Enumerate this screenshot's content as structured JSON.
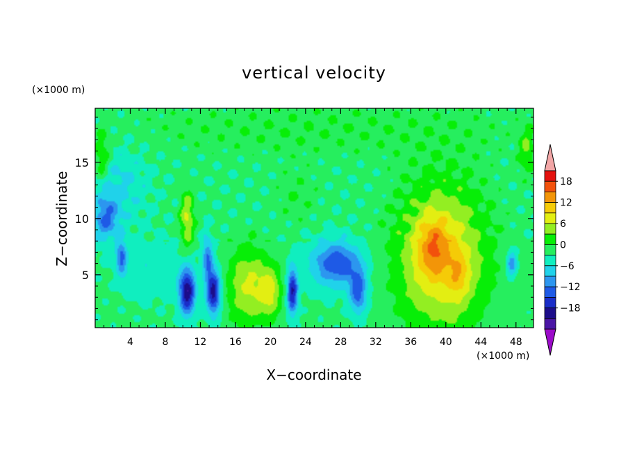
{
  "chart_data": {
    "type": "heatmap",
    "title": "vertical velocity",
    "xlabel": "X−coordinate",
    "ylabel": "Z−coordinate",
    "x_unit": "(×1000 m)",
    "z_unit": "(×1000 m)",
    "xlim": [
      0,
      50
    ],
    "zlim": [
      0.3,
      19.8
    ],
    "x_ticks": [
      "4",
      "8",
      "12",
      "16",
      "20",
      "24",
      "28",
      "32",
      "36",
      "40",
      "44",
      "48"
    ],
    "z_ticks": [
      "5",
      "10",
      "15"
    ],
    "colorbar": {
      "levels": [
        -21,
        -18,
        -15,
        -12,
        -9,
        -6,
        -3,
        0,
        3,
        6,
        9,
        12,
        15,
        18,
        21
      ],
      "tick_labels": [
        "18",
        "12",
        "6",
        "0",
        "−6",
        "−12",
        "−18"
      ],
      "colors": [
        "#9B0BC9",
        "#4A16A5",
        "#1C0D8A",
        "#1A2DC8",
        "#1E5AE6",
        "#2C96EF",
        "#20D2EA",
        "#10EEBF",
        "#26EE5E",
        "#07EE07",
        "#93EE22",
        "#E3EE12",
        "#F5CB07",
        "#F39508",
        "#F2510C",
        "#E4120F",
        "#F2A6A6"
      ]
    },
    "features": [
      {
        "x": 3.0,
        "z": 13.0,
        "rx": 3.0,
        "rz": 3.5,
        "w": -4
      },
      {
        "x": 1.2,
        "z": 10.0,
        "rx": 1.5,
        "rz": 2.0,
        "w": -9
      },
      {
        "x": 3.0,
        "z": 6.5,
        "rx": 0.6,
        "rz": 1.5,
        "w": -10
      },
      {
        "x": 6.5,
        "z": 5.5,
        "rx": 3.5,
        "rz": 2.5,
        "w": -3
      },
      {
        "x": 10.5,
        "z": 10.0,
        "rx": 0.8,
        "rz": 2.5,
        "w": 9
      },
      {
        "x": 10.5,
        "z": 3.5,
        "rx": 0.9,
        "rz": 2.0,
        "w": -18
      },
      {
        "x": 13.5,
        "z": 3.5,
        "rx": 0.8,
        "rz": 2.0,
        "w": -17
      },
      {
        "x": 12.8,
        "z": 6.5,
        "rx": 0.6,
        "rz": 2.0,
        "w": -9
      },
      {
        "x": 17.5,
        "z": 4.0,
        "rx": 2.4,
        "rz": 3.5,
        "w": 9
      },
      {
        "x": 20.0,
        "z": 3.5,
        "rx": 1.2,
        "rz": 2.2,
        "w": 8
      },
      {
        "x": 22.5,
        "z": 3.5,
        "rx": 0.6,
        "rz": 2.0,
        "w": -16
      },
      {
        "x": 23.0,
        "z": 12.0,
        "rx": 2.5,
        "rz": 2.5,
        "w": 2
      },
      {
        "x": 27.5,
        "z": 6.0,
        "rx": 2.8,
        "rz": 2.0,
        "w": -12
      },
      {
        "x": 30.0,
        "z": 3.5,
        "rx": 1.0,
        "rz": 2.0,
        "w": -11
      },
      {
        "x": 39.5,
        "z": 6.5,
        "rx": 5.0,
        "rz": 6.5,
        "w": 12
      },
      {
        "x": 38.5,
        "z": 7.5,
        "rx": 1.8,
        "rz": 2.5,
        "w": 7
      },
      {
        "x": 41.5,
        "z": 5.0,
        "rx": 1.2,
        "rz": 2.0,
        "w": 5
      },
      {
        "x": 47.5,
        "z": 6.0,
        "rx": 0.6,
        "rz": 1.2,
        "w": -9
      },
      {
        "x": 49.2,
        "z": 16.0,
        "rx": 0.8,
        "rz": 2.0,
        "w": 6
      },
      {
        "x": 0.8,
        "z": 15.5,
        "rx": 0.8,
        "rz": 2.0,
        "w": 6
      },
      {
        "x": 25.0,
        "z": 18.0,
        "rx": 25.0,
        "rz": 2.5,
        "w": 2
      }
    ]
  }
}
